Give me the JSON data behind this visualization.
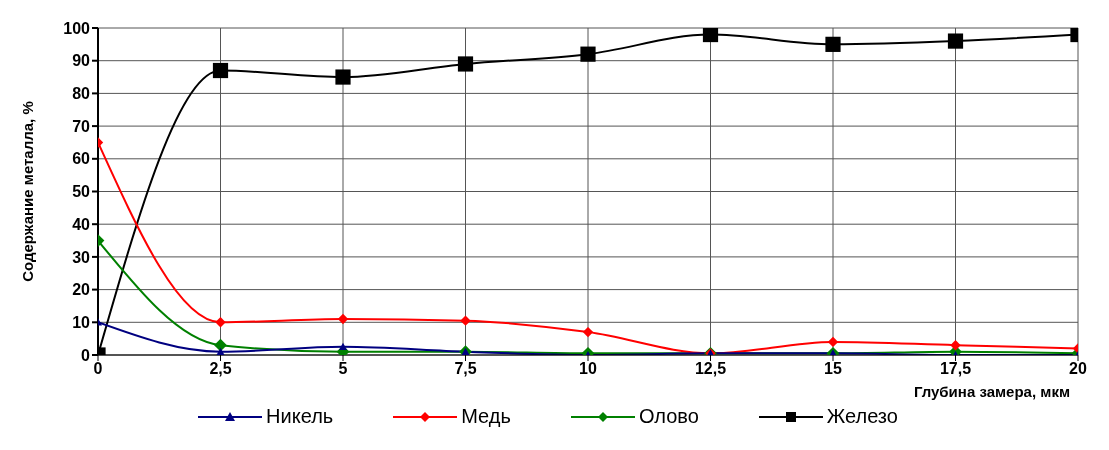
{
  "chart_data": {
    "type": "line",
    "xlabel": "Глубина замера, мкм",
    "ylabel": "Содержание металла, %",
    "x": [
      0,
      2.5,
      5,
      7.5,
      10,
      12.5,
      15,
      17.5,
      20
    ],
    "series": [
      {
        "name": "Никель",
        "color": "#000080",
        "marker": "triangle",
        "values": [
          10,
          1,
          2.5,
          1,
          0,
          0.5,
          0.5,
          0,
          0
        ]
      },
      {
        "name": "Медь",
        "color": "#ff0000",
        "marker": "diamond",
        "values": [
          65,
          10,
          11,
          10.5,
          7,
          0.5,
          4,
          3,
          2
        ]
      },
      {
        "name": "Олово",
        "color": "#008000",
        "marker": "diamond",
        "values": [
          35,
          3,
          1,
          1,
          0.5,
          0.5,
          0.5,
          1,
          0.5
        ]
      },
      {
        "name": "Железо",
        "color": "#000000",
        "marker": "square",
        "values": [
          0,
          87,
          85,
          89,
          92,
          98,
          95,
          96,
          98
        ]
      }
    ],
    "xlim": [
      0,
      20
    ],
    "xticks": [
      0,
      {
        "value": 2.5,
        "label": "2,5"
      },
      5,
      {
        "value": 7.5,
        "label": "7,5"
      },
      10,
      {
        "value": 12.5,
        "label": "12,5"
      },
      15,
      {
        "value": 17.5,
        "label": "17,5"
      },
      20
    ],
    "ylim": [
      0,
      100
    ],
    "yticks": [
      0,
      10,
      20,
      30,
      40,
      50,
      60,
      70,
      80,
      90,
      100
    ],
    "grid": true,
    "legend": "bottom"
  }
}
